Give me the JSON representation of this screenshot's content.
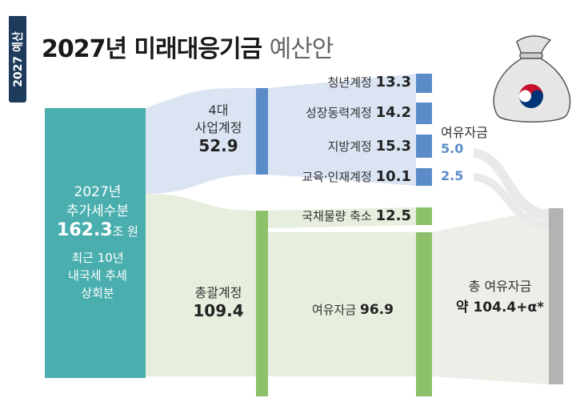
{
  "side_tab": "2027 예산",
  "title": {
    "main": "2027년 미래대응기금",
    "suffix": "예산안"
  },
  "source": {
    "line1": "2027년",
    "line2": "추가세수분",
    "value": "162.3",
    "unit": "조 원",
    "note": [
      "최근 10년",
      "내국세 추세",
      "상회분"
    ]
  },
  "business": {
    "line1": "4대",
    "line2": "사업계정",
    "value": "52.9"
  },
  "general": {
    "label": "총괄계정",
    "value": "109.4"
  },
  "accounts": [
    {
      "name": "청년계정",
      "value": "13.3"
    },
    {
      "name": "성장동력계정",
      "value": "14.2"
    },
    {
      "name": "지방계정",
      "value": "15.3"
    },
    {
      "name": "교육·인재계정",
      "value": "10.1"
    }
  ],
  "reserve": {
    "label": "여유자금",
    "values": [
      "5.0",
      "2.5"
    ]
  },
  "bond": {
    "name": "국채물량 축소",
    "value": "12.5"
  },
  "general_reserve": {
    "name": "여유자금",
    "value": "96.9"
  },
  "total": {
    "line1": "총 여유자금",
    "line2": "약 104.4+α*"
  },
  "colors": {
    "teal": "#4aaeae",
    "blue": "#5b8cc9",
    "green": "#8cc06a",
    "gray": "#b3b3b3"
  },
  "icon": "money-bag-icon"
}
